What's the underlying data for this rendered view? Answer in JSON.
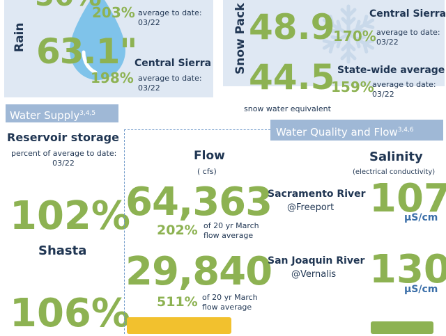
{
  "rain": {
    "label": "Rain",
    "top_pct": "203%",
    "top_note": "average to date:\n03/22",
    "value": "63.1\"",
    "region": "Central Sierra",
    "pct": "198%",
    "note": "average to date:\n03/22"
  },
  "snow": {
    "label": "Snow Pack",
    "central_value": "48.9",
    "central_pct": "170%",
    "central_region": "Central Sierra",
    "central_note": "average to date:\n03/22",
    "state_value": "44.5",
    "state_pct": "159%",
    "state_region": "State-wide average",
    "state_note": "average to date:\n03/22",
    "footnote": "snow water equivalent"
  },
  "water_supply": {
    "header": "Water Supply",
    "sup": "3,4,5",
    "title": "Reservoir storage",
    "subtitle": "percent of average to date:\n03/22",
    "items": [
      {
        "pct": "102%",
        "name": "Shasta"
      },
      {
        "pct": "106%",
        "name": ""
      }
    ]
  },
  "water_quality": {
    "header": "Water Quality and Flow",
    "sup": "3,4,6",
    "flow_title": "Flow",
    "flow_unit": "( cfs)",
    "salinity_title": "Salinity",
    "salinity_unit": "(electrical conductivity)",
    "rows": [
      {
        "flow": "64,363",
        "pct": "202%",
        "pct_note": "of 20 yr March\nflow average",
        "river": "Sacramento River",
        "location": "@Freeport",
        "salinity": "107",
        "sal_unit": "µS/cm"
      },
      {
        "flow": "29,840",
        "pct": "511%",
        "pct_note": "of 20 yr March\nflow average",
        "river": "San Joaquin River",
        "location": "@Vernalis",
        "salinity": "130",
        "sal_unit": "µS/cm"
      }
    ]
  }
}
